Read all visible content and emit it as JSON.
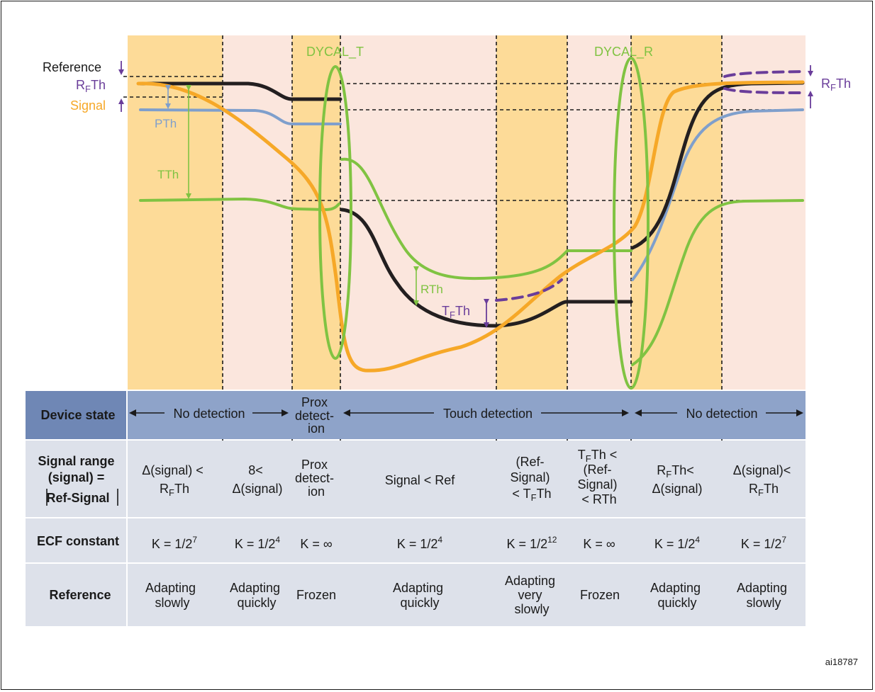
{
  "labels": {
    "reference": "Reference",
    "rfth": "RFTh",
    "signal": "Signal",
    "pth": "PTh",
    "tth": "TTh",
    "rth": "RTh",
    "tfth": "TFTh",
    "dycal_t": "DYCAL_T",
    "dycal_r": "DYCAL_R",
    "ref_id": "ai18787"
  },
  "colors": {
    "phase_fast": "#fddb98",
    "phase_slow": "#fbe6dd",
    "reference_curve": "#231f20",
    "signal_curve": "#f6a828",
    "pth_curve": "#7f9fcc",
    "tth_curve": "#80c342",
    "rfth_marker": "#6a3d9a",
    "state_row": "#8ea3c9",
    "table_row": "#dde1ea"
  },
  "table": {
    "row_headers": {
      "state": "Device state",
      "range": [
        "Signal range",
        "(signal) =",
        "Ref-Signal"
      ],
      "ecf": "ECF constant",
      "reference": "Reference"
    },
    "states": {
      "no_detection_1": "No detection",
      "prox": [
        "Prox",
        "detect-",
        "ion"
      ],
      "touch": "Touch detection",
      "no_detection_2": "No detection"
    },
    "range_cells": [
      [
        "Δ(signal) <",
        "RFTh"
      ],
      [
        "8<",
        "Δ(signal)"
      ],
      [
        "Prox",
        "detect-",
        "ion"
      ],
      [
        "Signal < Ref"
      ],
      [
        "(Ref-",
        "Signal)",
        "< TFTh"
      ],
      [
        "TFTh <",
        "(Ref-",
        "Signal)",
        "< RTh"
      ],
      [
        "RFTh<",
        "Δ(signal)"
      ],
      [
        "Δ(signal)<",
        "RFTh"
      ]
    ],
    "ecf_cells": [
      {
        "base": "K = 1/2",
        "exp": "7"
      },
      {
        "base": "K = 1/2",
        "exp": "4"
      },
      {
        "base": "K = ∞",
        "exp": ""
      },
      {
        "base": "K = 1/2",
        "exp": "4"
      },
      {
        "base": "K = 1/2",
        "exp": "12"
      },
      {
        "base": "K = ∞",
        "exp": ""
      },
      {
        "base": "K = 1/2",
        "exp": "4"
      },
      {
        "base": "K = 1/2",
        "exp": "7"
      }
    ],
    "reference_cells": [
      [
        "Adapting",
        "slowly"
      ],
      [
        "Adapting",
        "quickly"
      ],
      [
        "Frozen"
      ],
      [
        "Adapting",
        "quickly"
      ],
      [
        "Adapting",
        "very",
        "slowly"
      ],
      [
        "Frozen"
      ],
      [
        "Adapting",
        "quickly"
      ],
      [
        "Adapting",
        "slowly"
      ]
    ]
  }
}
